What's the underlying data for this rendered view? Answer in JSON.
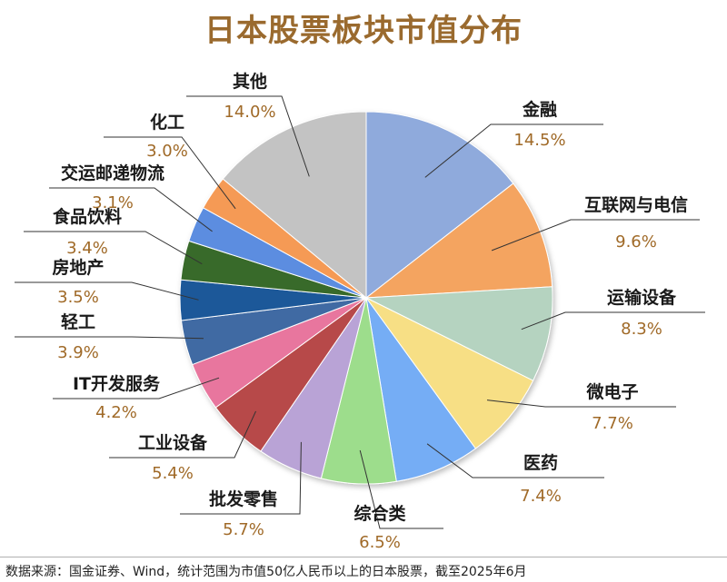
{
  "title": "日本股票板块市值分布",
  "source": "数据来源：国金证券、Wind，统计范围为市值50亿人民币以上的日本股票，截至2025年6月",
  "chart_data": {
    "type": "pie",
    "title": "日本股票板块市值分布",
    "unit": "%",
    "slices": [
      {
        "label": "金融",
        "value": 14.5,
        "display": "14.5%",
        "color": "#8faadc"
      },
      {
        "label": "互联网与电信",
        "value": 9.6,
        "display": "9.6%",
        "color": "#f4a460"
      },
      {
        "label": "运输设备",
        "value": 8.3,
        "display": "8.3%",
        "color": "#b5d3c0"
      },
      {
        "label": "微电子",
        "value": 7.7,
        "display": "7.7%",
        "color": "#f7df85"
      },
      {
        "label": "医药",
        "value": 7.4,
        "display": "7.4%",
        "color": "#74adf5"
      },
      {
        "label": "综合类",
        "value": 6.5,
        "display": "6.5%",
        "color": "#9ddd8c"
      },
      {
        "label": "批发零售",
        "value": 5.7,
        "display": "5.7%",
        "color": "#b9a3d6"
      },
      {
        "label": "工业设备",
        "value": 5.4,
        "display": "5.4%",
        "color": "#b74a4a"
      },
      {
        "label": "IT开发服务",
        "value": 4.2,
        "display": "4.2%",
        "color": "#e8769e"
      },
      {
        "label": "轻工",
        "value": 3.9,
        "display": "3.9%",
        "color": "#3f6aa3"
      },
      {
        "label": "房地产",
        "value": 3.5,
        "display": "3.5%",
        "color": "#1f5899"
      },
      {
        "label": "食品饮料",
        "value": 3.4,
        "display": "3.4%",
        "color": "#386a2c"
      },
      {
        "label": "交运邮递物流",
        "value": 3.1,
        "display": "3.1%",
        "color": "#5b8de0"
      },
      {
        "label": "化工",
        "value": 3.0,
        "display": "3.0%",
        "color": "#f59a55"
      },
      {
        "label": "其他",
        "value": 14.0,
        "display": "14.0%",
        "color": "#c3c3c3"
      }
    ]
  }
}
